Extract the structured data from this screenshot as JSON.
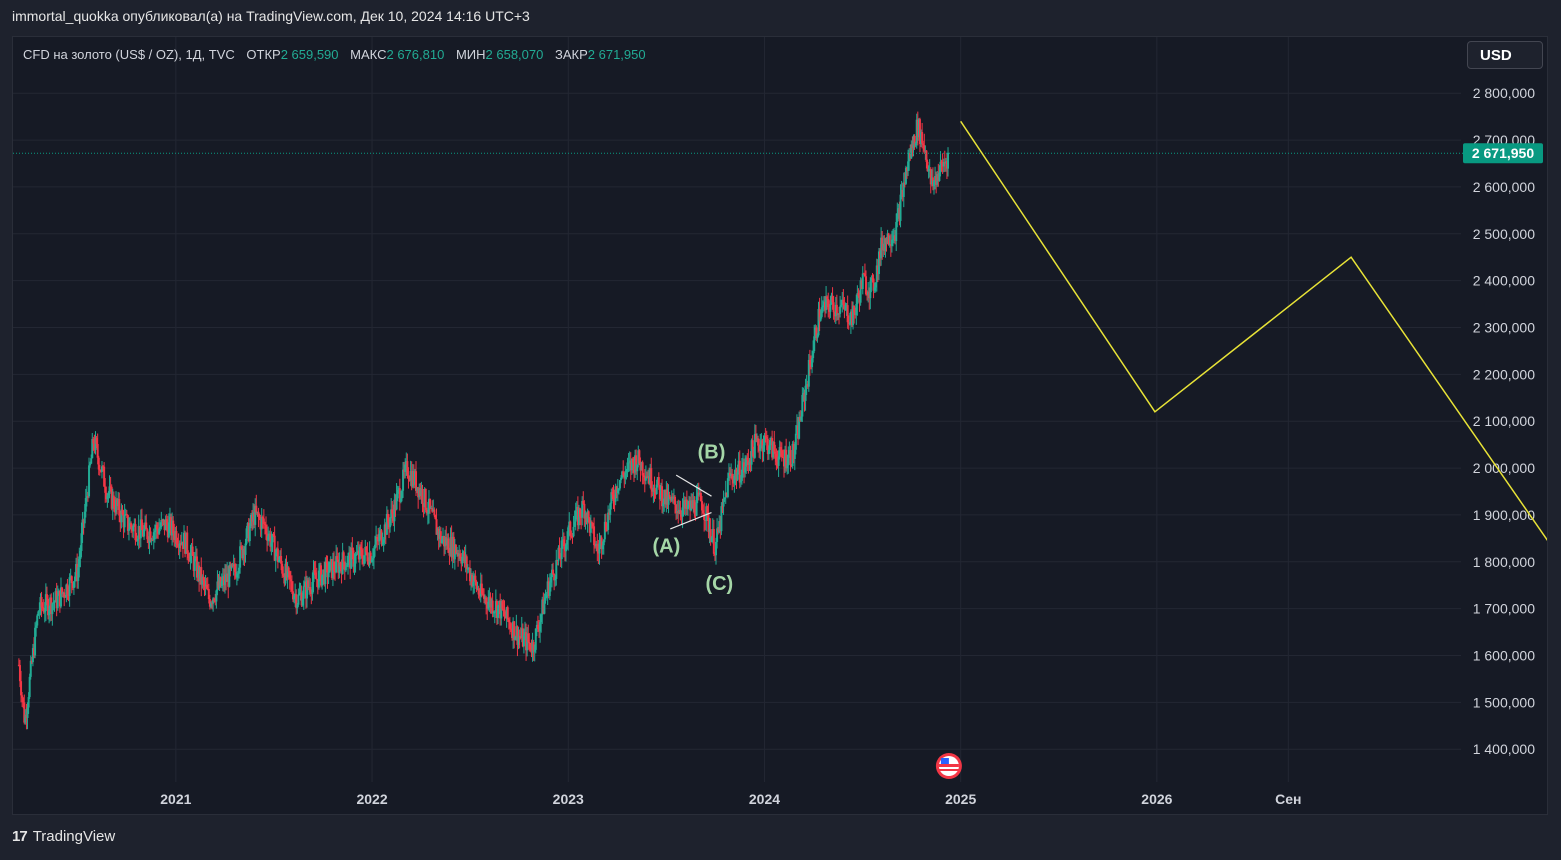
{
  "header": {
    "publisher": "immortal_quokka опубликовал(а) на TradingView.com, Дек 10, 2024 14:16 UTC+3"
  },
  "legend": {
    "symbol": "CFD на золото (US$ / OZ), 1Д, TVC",
    "open_label": "ОТКР",
    "open": "2 659,590",
    "high_label": "МАКС",
    "high": "2 676,810",
    "low_label": "МИН",
    "low": "2 658,070",
    "close_label": "ЗАКР",
    "close": "2 671,950"
  },
  "currency": "USD",
  "footer": {
    "brand": "TradingView",
    "logo_text": "17"
  },
  "colors": {
    "up": "#22ab94",
    "down": "#f23645",
    "projection": "#e8e337",
    "wave_label": "#a5d6a7",
    "price_tag": "#089981"
  },
  "chart_data": {
    "type": "candlestick",
    "y_axis": {
      "ticks": [
        1400000,
        1500000,
        1600000,
        1700000,
        1800000,
        1900000,
        2000000,
        2100000,
        2200000,
        2300000,
        2400000,
        2500000,
        2600000,
        2700000,
        2800000
      ],
      "tick_labels": [
        "1 400,000",
        "1 500,000",
        "1 600,000",
        "1 700,000",
        "1 800,000",
        "1 900,000",
        "2 000,000",
        "2 100,000",
        "2 200,000",
        "2 300,000",
        "2 400,000",
        "2 500,000",
        "2 600,000",
        "2 700,000",
        "2 800,000"
      ],
      "range": [
        1330000,
        2920000
      ]
    },
    "x_axis": {
      "ticks": [
        2021.0,
        2022.0,
        2023.0,
        2024.0,
        2025.0,
        2026.0,
        2026.67
      ],
      "tick_labels": [
        "2021",
        "2022",
        "2023",
        "2024",
        "2025",
        "2026",
        "Сен"
      ],
      "range": [
        2020.17,
        2027.55
      ]
    },
    "last_price": {
      "value": 2671950,
      "label": "2 671,950"
    },
    "price_path": [
      [
        2020.2,
        1580000
      ],
      [
        2020.23,
        1460000
      ],
      [
        2020.3,
        1700000
      ],
      [
        2020.4,
        1720000
      ],
      [
        2020.5,
        1780000
      ],
      [
        2020.58,
        2060000
      ],
      [
        2020.65,
        1950000
      ],
      [
        2020.75,
        1880000
      ],
      [
        2020.85,
        1860000
      ],
      [
        2020.95,
        1880000
      ],
      [
        2021.05,
        1840000
      ],
      [
        2021.17,
        1720000
      ],
      [
        2021.25,
        1760000
      ],
      [
        2021.3,
        1780000
      ],
      [
        2021.4,
        1900000
      ],
      [
        2021.45,
        1880000
      ],
      [
        2021.55,
        1780000
      ],
      [
        2021.62,
        1720000
      ],
      [
        2021.7,
        1760000
      ],
      [
        2021.85,
        1800000
      ],
      [
        2022.0,
        1820000
      ],
      [
        2022.1,
        1900000
      ],
      [
        2022.18,
        2000000
      ],
      [
        2022.25,
        1950000
      ],
      [
        2022.35,
        1850000
      ],
      [
        2022.45,
        1820000
      ],
      [
        2022.55,
        1730000
      ],
      [
        2022.65,
        1700000
      ],
      [
        2022.75,
        1640000
      ],
      [
        2022.82,
        1620000
      ],
      [
        2022.9,
        1750000
      ],
      [
        2023.0,
        1860000
      ],
      [
        2023.08,
        1920000
      ],
      [
        2023.15,
        1820000
      ],
      [
        2023.25,
        1970000
      ],
      [
        2023.35,
        2020000
      ],
      [
        2023.45,
        1960000
      ],
      [
        2023.5,
        1930000
      ],
      [
        2023.6,
        1910000
      ],
      [
        2023.68,
        1930000
      ],
      [
        2023.75,
        1830000
      ],
      [
        2023.82,
        1980000
      ],
      [
        2023.9,
        2000000
      ],
      [
        2023.95,
        2050000
      ],
      [
        2024.0,
        2060000
      ],
      [
        2024.08,
        2020000
      ],
      [
        2024.15,
        2030000
      ],
      [
        2024.2,
        2150000
      ],
      [
        2024.28,
        2330000
      ],
      [
        2024.33,
        2350000
      ],
      [
        2024.4,
        2340000
      ],
      [
        2024.45,
        2320000
      ],
      [
        2024.5,
        2400000
      ],
      [
        2024.55,
        2380000
      ],
      [
        2024.6,
        2480000
      ],
      [
        2024.67,
        2510000
      ],
      [
        2024.73,
        2650000
      ],
      [
        2024.78,
        2730000
      ],
      [
        2024.82,
        2680000
      ],
      [
        2024.85,
        2600000
      ],
      [
        2024.9,
        2640000
      ],
      [
        2024.94,
        2670000
      ]
    ],
    "projection": [
      [
        2025.0,
        2740000
      ],
      [
        2025.99,
        2120000
      ],
      [
        2026.99,
        2450000
      ],
      [
        2028.05,
        1810000
      ]
    ],
    "wave_labels": [
      {
        "text": "(A)",
        "x": 2023.5,
        "y": 1820000
      },
      {
        "text": "(B)",
        "x": 2023.73,
        "y": 2020000
      },
      {
        "text": "(C)",
        "x": 2023.77,
        "y": 1740000
      }
    ],
    "wave_lines": [
      [
        [
          2023.55,
          1985000
        ],
        [
          2023.73,
          1940000
        ]
      ],
      [
        [
          2023.52,
          1870000
        ],
        [
          2023.73,
          1905000
        ]
      ]
    ]
  }
}
